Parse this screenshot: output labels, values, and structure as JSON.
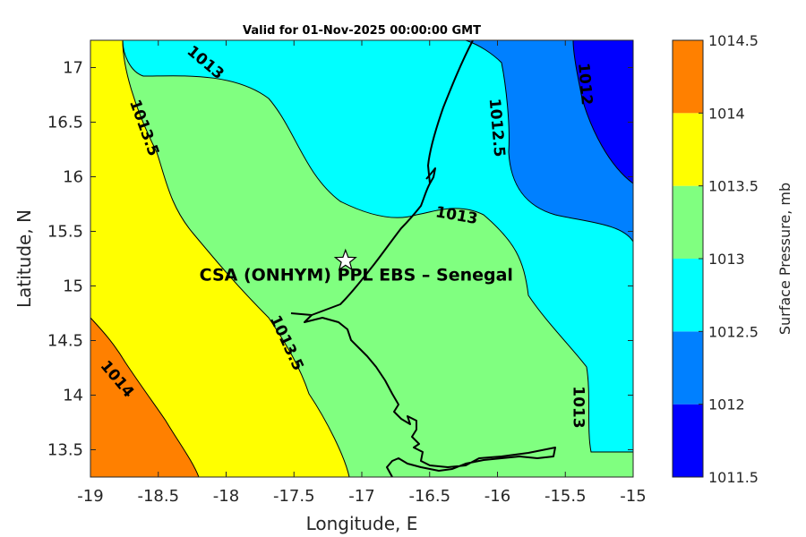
{
  "title": "Valid for 01-Nov-2025 00:00:00 GMT",
  "xlabel": "Longitude, E",
  "ylabel": "Latitude, N",
  "colorbar_label": "Surface Pressure, mb",
  "site_label": "CSA (ONHYM) PPL EBS  – Senegal",
  "marker_symbol": "star",
  "colors": {
    "1011.5": "#0000ff",
    "1012": "#0080ff",
    "1012.5": "#00ffff",
    "1013": "#80ff80",
    "1013.5": "#ffff00",
    "1014": "#ff8000",
    "1014.5": "#ff0000"
  },
  "chart_data": {
    "type": "heatmap",
    "subtype": "filled contour map",
    "title": "Valid for 01-Nov-2025 00:00:00 GMT",
    "xlabel": "Longitude, E",
    "ylabel": "Latitude, N",
    "xlim": [
      -19,
      -15
    ],
    "ylim": [
      13.25,
      17.25
    ],
    "xticks": [
      "-19",
      "-18.5",
      "-18",
      "-17.5",
      "-17",
      "-16.5",
      "-16",
      "-15.5",
      "-15"
    ],
    "yticks": [
      "13.5",
      "14",
      "14.5",
      "15",
      "15.5",
      "16",
      "16.5",
      "17"
    ],
    "colorbar": {
      "label": "Surface Pressure, mb",
      "levels": [
        1011.5,
        1012,
        1012.5,
        1013,
        1013.5,
        1014,
        1014.5
      ],
      "tick_labels": [
        "1011.5",
        "1012",
        "1012.5",
        "1013",
        "1013.5",
        "1014",
        "1014.5"
      ]
    },
    "contour_labels": [
      {
        "text": "1013",
        "lon": -18.15,
        "lat": 17.05,
        "angle": 40
      },
      {
        "text": "1013.5",
        "lon": -18.6,
        "lat": 16.45,
        "angle": 70
      },
      {
        "text": "1012.5",
        "lon": -16.0,
        "lat": 16.45,
        "angle": 85
      },
      {
        "text": "1012",
        "lon": -15.35,
        "lat": 16.85,
        "angle": 85
      },
      {
        "text": "1013",
        "lon": -16.3,
        "lat": 15.65,
        "angle": 10
      },
      {
        "text": "1013.5",
        "lon": -17.55,
        "lat": 14.48,
        "angle": 65
      },
      {
        "text": "1014",
        "lon": -18.8,
        "lat": 14.15,
        "angle": 50
      },
      {
        "text": "1013",
        "lon": -15.4,
        "lat": 13.89,
        "angle": 90
      }
    ],
    "site": {
      "name": "CSA (ONHYM) PPL EBS  – Senegal",
      "lon": -17.12,
      "lat": 15.23
    },
    "grid": false
  }
}
